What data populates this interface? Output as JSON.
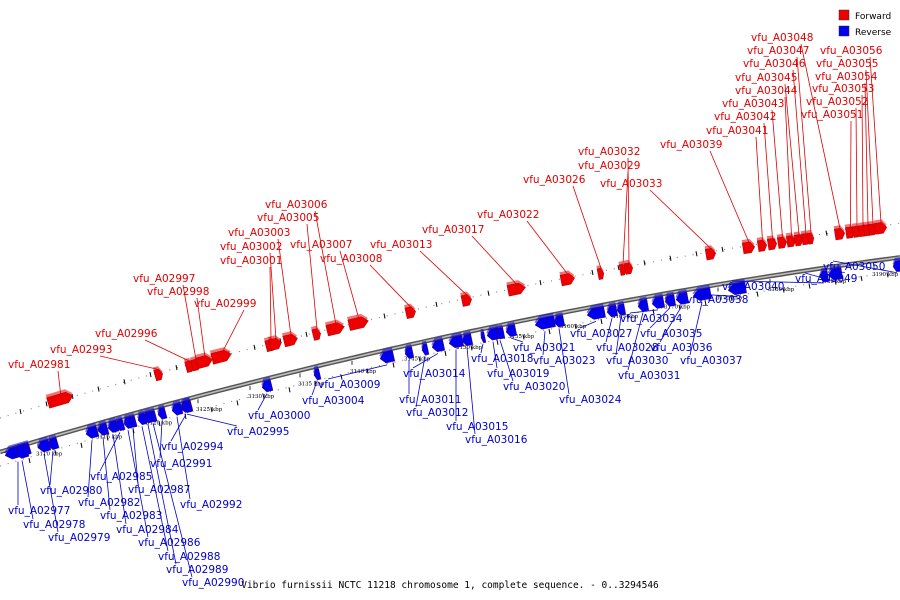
{
  "caption": "Vibrio furnissii NCTC 11218 chromosome 1, complete sequence. - 0..3294546",
  "legend": [
    {
      "label": "Forward",
      "color": "#ee0000"
    },
    {
      "label": "Reverse",
      "color": "#0000ee"
    }
  ],
  "colors": {
    "forward": "#ee0000",
    "reverse": "#0000ee",
    "backbone": "#777777"
  },
  "tick_labels": [
    "3110 kbp",
    "3115 kbp",
    "3120 kbp",
    "3125 kbp",
    "3130 kbp",
    "3135 kbp",
    "3140 kbp",
    "3145 kbp",
    "3150 kbp",
    "3155 kbp",
    "3160 kbp",
    "3165 kbp",
    "3170 kbp",
    "3175 kbp",
    "3180 kbp",
    "3185 kbp",
    "3190 kbp"
  ],
  "forward_genes": [
    "vfu_A02981",
    "vfu_A02993",
    "vfu_A02996",
    "vfu_A02997",
    "vfu_A02998",
    "vfu_A02999",
    "vfu_A03001",
    "vfu_A03002",
    "vfu_A03003",
    "vfu_A03005",
    "vfu_A03006",
    "vfu_A03007",
    "vfu_A03008",
    "vfu_A03013",
    "vfu_A03017",
    "vfu_A03022",
    "vfu_A03026",
    "vfu_A03029",
    "vfu_A03032",
    "vfu_A03033",
    "vfu_A03039",
    "vfu_A03041",
    "vfu_A03042",
    "vfu_A03043",
    "vfu_A03044",
    "vfu_A03045",
    "vfu_A03046",
    "vfu_A03047",
    "vfu_A03048",
    "vfu_A03051",
    "vfu_A03052",
    "vfu_A03053",
    "vfu_A03054",
    "vfu_A03055",
    "vfu_A03056"
  ],
  "reverse_genes": [
    "vfu_A02977",
    "vfu_A02978",
    "vfu_A02979",
    "vfu_A02980",
    "vfu_A02982",
    "vfu_A02983",
    "vfu_A02984",
    "vfu_A02985",
    "vfu_A02986",
    "vfu_A02987",
    "vfu_A02988",
    "vfu_A02989",
    "vfu_A02990",
    "vfu_A02991",
    "vfu_A02992",
    "vfu_A02994",
    "vfu_A02995",
    "vfu_A03000",
    "vfu_A03004",
    "vfu_A03009",
    "vfu_A03011",
    "vfu_A03012",
    "vfu_A03014",
    "vfu_A03015",
    "vfu_A03016",
    "vfu_A03018",
    "vfu_A03019",
    "vfu_A03020",
    "vfu_A03021",
    "vfu_A03023",
    "vfu_A03024",
    "vfu_A03027",
    "vfu_A03028",
    "vfu_A03030",
    "vfu_A03031",
    "vfu_A03034",
    "vfu_A03035",
    "vfu_A03036",
    "vfu_A03037",
    "vfu_A03038",
    "vfu_A03040",
    "vfu_A03049",
    "vfu_A03050"
  ]
}
